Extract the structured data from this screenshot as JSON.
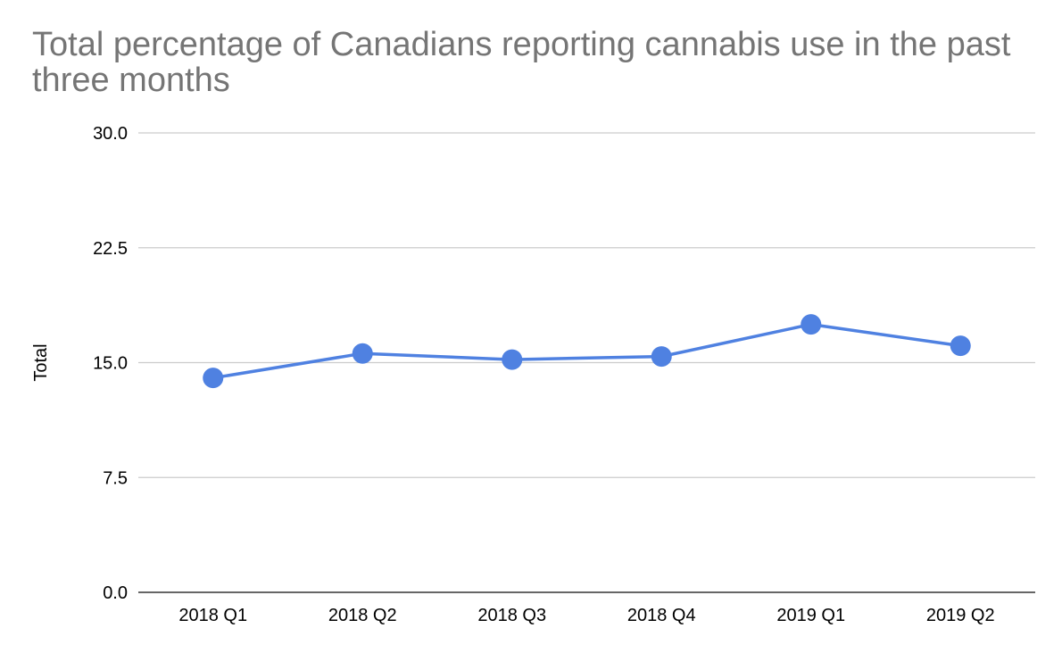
{
  "chart_data": {
    "type": "line",
    "title": "Total percentage of Canadians reporting cannabis use in the past three months",
    "xlabel": "",
    "ylabel": "Total",
    "categories": [
      "2018 Q1",
      "2018 Q2",
      "2018 Q3",
      "2018 Q4",
      "2019 Q1",
      "2019 Q2"
    ],
    "series": [
      {
        "name": "Total",
        "values": [
          14.0,
          15.6,
          15.2,
          15.4,
          17.5,
          16.1
        ]
      }
    ],
    "ylim": [
      0,
      30
    ],
    "yticks": [
      "0.0",
      "7.5",
      "15.0",
      "22.5",
      "30.0"
    ],
    "ytick_values": [
      0,
      7.5,
      15,
      22.5,
      30
    ],
    "grid": true,
    "legend": "none",
    "colors": {
      "series": "#4f81e1",
      "grid": "#cccccc",
      "axis": "#333333",
      "title": "#757575"
    }
  }
}
